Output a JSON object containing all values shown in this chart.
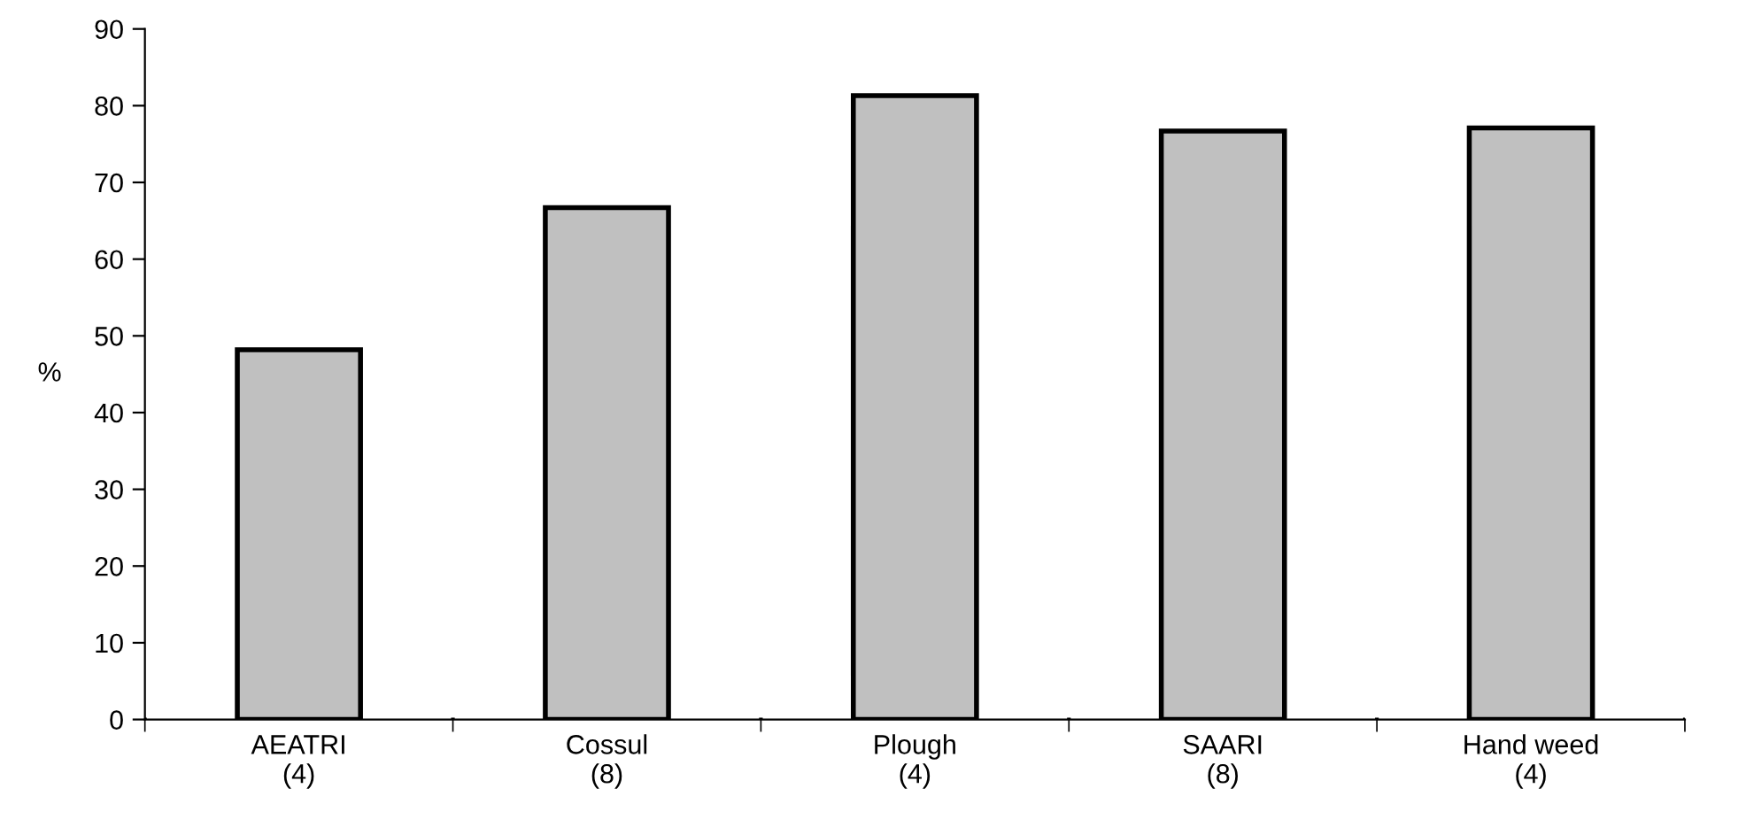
{
  "chart_data": {
    "type": "bar",
    "ylabel": "%",
    "categories": [
      "AEATRI\n(4)",
      "Cossul\n(8)",
      "Plough\n(4)",
      "SAARI\n(8)",
      "Hand weed\n(4)"
    ],
    "values": [
      48.2,
      66.7,
      81.3,
      76.7,
      77.1
    ],
    "color": "#c0c0c0",
    "ylim": [
      0,
      90
    ],
    "yticks": [
      0,
      10,
      20,
      30,
      40,
      50,
      60,
      70,
      80,
      90
    ],
    "grid": false,
    "legend": false
  }
}
